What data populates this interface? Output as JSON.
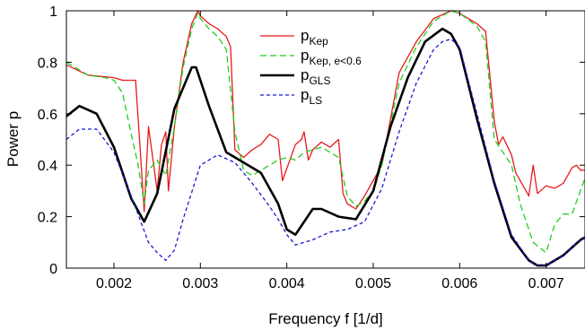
{
  "chart_data": {
    "type": "line",
    "xlabel": "Frequency f [1/d]",
    "ylabel": "Power p",
    "xlim": [
      0.00145,
      0.00745
    ],
    "ylim": [
      0,
      1
    ],
    "xticks": [
      0.002,
      0.003,
      0.004,
      0.005,
      0.006,
      0.007
    ],
    "xtick_labels": [
      "0.002",
      "0.003",
      "0.004",
      "0.005",
      "0.006",
      "0.007"
    ],
    "yticks": [
      0,
      0.2,
      0.4,
      0.6,
      0.8,
      1
    ],
    "ytick_labels": [
      "0",
      "0.2",
      "0.4",
      "0.6",
      "0.8",
      "1"
    ],
    "legend_position": "top-center",
    "series": [
      {
        "name": "p_Kep",
        "label_main": "p",
        "label_sub": "Kep",
        "color": "#e8191b",
        "dash": "solid",
        "x": [
          0.00145,
          0.0017,
          0.002,
          0.0021,
          0.0022,
          0.00225,
          0.0023,
          0.00235,
          0.0024,
          0.0025,
          0.00255,
          0.0026,
          0.00263,
          0.0027,
          0.0028,
          0.0029,
          0.00297,
          0.003,
          0.0031,
          0.0032,
          0.0033,
          0.00335,
          0.0034,
          0.0035,
          0.0036,
          0.0037,
          0.0038,
          0.0039,
          0.00395,
          0.0041,
          0.00417,
          0.0042,
          0.00425,
          0.0043,
          0.0044,
          0.0045,
          0.0046,
          0.00465,
          0.0047,
          0.0048,
          0.0049,
          0.0051,
          0.0053,
          0.0055,
          0.0057,
          0.0059,
          0.006,
          0.0062,
          0.0063,
          0.0064,
          0.00645,
          0.0065,
          0.0066,
          0.00665,
          0.0067,
          0.0068,
          0.00685,
          0.0069,
          0.007,
          0.0071,
          0.0072,
          0.0073,
          0.00735,
          0.0074,
          0.00745
        ],
        "y": [
          0.79,
          0.75,
          0.74,
          0.73,
          0.73,
          0.73,
          0.48,
          0.22,
          0.55,
          0.3,
          0.48,
          0.53,
          0.3,
          0.55,
          0.8,
          0.95,
          1.0,
          0.98,
          0.95,
          0.93,
          0.9,
          0.86,
          0.46,
          0.43,
          0.46,
          0.48,
          0.52,
          0.5,
          0.34,
          0.48,
          0.5,
          0.53,
          0.42,
          0.46,
          0.49,
          0.47,
          0.5,
          0.29,
          0.25,
          0.23,
          0.28,
          0.4,
          0.76,
          0.88,
          0.97,
          1.0,
          0.99,
          0.95,
          0.92,
          0.57,
          0.48,
          0.51,
          0.44,
          0.37,
          0.34,
          0.28,
          0.4,
          0.29,
          0.32,
          0.31,
          0.33,
          0.39,
          0.4,
          0.38,
          0.38
        ]
      },
      {
        "name": "p_Kep, e<0.6",
        "label_main": "p",
        "label_sub": "Kep, e<0.6",
        "color": "#1fcf1f",
        "dash": "dashed",
        "x": [
          0.00145,
          0.0017,
          0.0019,
          0.002,
          0.0021,
          0.0022,
          0.00228,
          0.00235,
          0.0024,
          0.0025,
          0.0026,
          0.0027,
          0.0028,
          0.0029,
          0.00297,
          0.003,
          0.0031,
          0.0032,
          0.0033,
          0.0034,
          0.0035,
          0.0036,
          0.0037,
          0.0038,
          0.0039,
          0.004,
          0.0041,
          0.0042,
          0.0043,
          0.0044,
          0.0045,
          0.0046,
          0.0047,
          0.0048,
          0.0049,
          0.005,
          0.0051,
          0.0053,
          0.0055,
          0.0057,
          0.0059,
          0.006,
          0.0062,
          0.0063,
          0.0064,
          0.0065,
          0.0066,
          0.0067,
          0.00685,
          0.007,
          0.0071,
          0.0072,
          0.0073,
          0.00745
        ],
        "y": [
          0.8,
          0.75,
          0.74,
          0.73,
          0.68,
          0.52,
          0.4,
          0.25,
          0.38,
          0.42,
          0.36,
          0.55,
          0.78,
          0.93,
          0.99,
          0.97,
          0.93,
          0.9,
          0.85,
          0.53,
          0.38,
          0.36,
          0.38,
          0.4,
          0.42,
          0.43,
          0.42,
          0.45,
          0.46,
          0.47,
          0.45,
          0.43,
          0.28,
          0.24,
          0.26,
          0.3,
          0.4,
          0.72,
          0.86,
          0.96,
          1.0,
          0.99,
          0.94,
          0.88,
          0.5,
          0.45,
          0.4,
          0.25,
          0.1,
          0.06,
          0.17,
          0.21,
          0.21,
          0.35
        ]
      },
      {
        "name": "p_GLS",
        "label_main": "p",
        "label_sub": "GLS",
        "color": "#000000",
        "dash": "solid",
        "x": [
          0.00145,
          0.0016,
          0.0018,
          0.002,
          0.0022,
          0.00235,
          0.0025,
          0.0027,
          0.0029,
          0.00295,
          0.0031,
          0.0033,
          0.0035,
          0.0037,
          0.0039,
          0.004,
          0.0041,
          0.0043,
          0.0044,
          0.0046,
          0.0048,
          0.005,
          0.0052,
          0.0054,
          0.0056,
          0.0058,
          0.0059,
          0.006,
          0.0062,
          0.0064,
          0.0066,
          0.0068,
          0.0069,
          0.007,
          0.0072,
          0.0074,
          0.00745
        ],
        "y": [
          0.59,
          0.63,
          0.6,
          0.47,
          0.27,
          0.18,
          0.29,
          0.62,
          0.78,
          0.78,
          0.63,
          0.45,
          0.41,
          0.37,
          0.25,
          0.15,
          0.13,
          0.23,
          0.23,
          0.2,
          0.19,
          0.3,
          0.55,
          0.74,
          0.88,
          0.93,
          0.91,
          0.85,
          0.58,
          0.33,
          0.12,
          0.03,
          0.01,
          0.01,
          0.05,
          0.11,
          0.12
        ]
      },
      {
        "name": "p_LS",
        "label_main": "p",
        "label_sub": "LS",
        "color": "#1a1ad4",
        "dash": "dotted",
        "x": [
          0.00145,
          0.0016,
          0.0018,
          0.002,
          0.0022,
          0.0024,
          0.0025,
          0.0026,
          0.0027,
          0.0028,
          0.003,
          0.0032,
          0.0034,
          0.0036,
          0.0038,
          0.0039,
          0.004,
          0.0041,
          0.0043,
          0.0045,
          0.0047,
          0.0049,
          0.0051,
          0.0053,
          0.0055,
          0.0057,
          0.0058,
          0.0059,
          0.006,
          0.0062,
          0.0064,
          0.0066,
          0.0068,
          0.0069,
          0.007,
          0.0072,
          0.0074,
          0.00745
        ],
        "y": [
          0.5,
          0.54,
          0.54,
          0.45,
          0.28,
          0.1,
          0.06,
          0.03,
          0.07,
          0.19,
          0.4,
          0.44,
          0.41,
          0.33,
          0.24,
          0.19,
          0.13,
          0.09,
          0.11,
          0.14,
          0.15,
          0.18,
          0.31,
          0.53,
          0.72,
          0.85,
          0.88,
          0.89,
          0.86,
          0.6,
          0.34,
          0.13,
          0.03,
          0.01,
          0.01,
          0.05,
          0.11,
          0.12
        ]
      }
    ]
  }
}
